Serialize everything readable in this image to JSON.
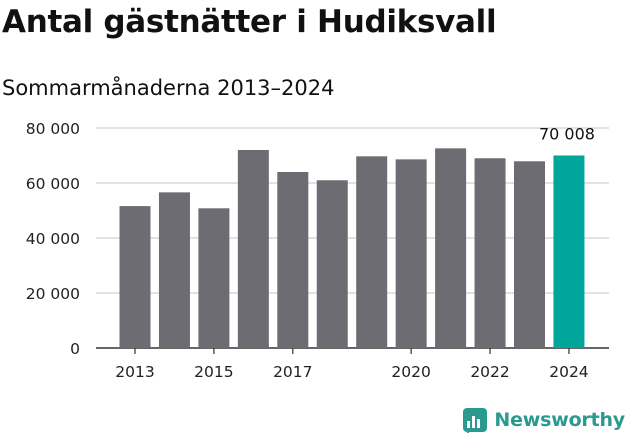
{
  "header": {
    "title": "Antal gästnätter i Hudiksvall",
    "subtitle": "Sommarmånaderna 2013–2024"
  },
  "brand": {
    "name": "Newsworthy",
    "icon": "newsworthy-logo-icon",
    "color": "#2a9a8f"
  },
  "chart_data": {
    "type": "bar",
    "categories": [
      "2013",
      "2014",
      "2015",
      "2016",
      "2017",
      "2018",
      "2019",
      "2020",
      "2021",
      "2022",
      "2023",
      "2024"
    ],
    "values": [
      51600,
      56600,
      50800,
      72000,
      64000,
      61000,
      69700,
      68600,
      72600,
      69000,
      67900,
      70008
    ],
    "x_tick_labels": [
      "2013",
      "2015",
      "2017",
      "2020",
      "2022",
      "2024"
    ],
    "y_ticks": [
      0,
      20000,
      40000,
      60000,
      80000
    ],
    "y_tick_labels": [
      "0",
      "20 000",
      "40 000",
      "60 000",
      "80 000"
    ],
    "ylim": [
      0,
      80000
    ],
    "highlight_index": 11,
    "highlight_label": "70 008",
    "colors": {
      "bar": "#6d6c72",
      "highlight": "#00a69a",
      "grid": "#d9d9d9",
      "axis": "#333333"
    },
    "grid": true
  }
}
